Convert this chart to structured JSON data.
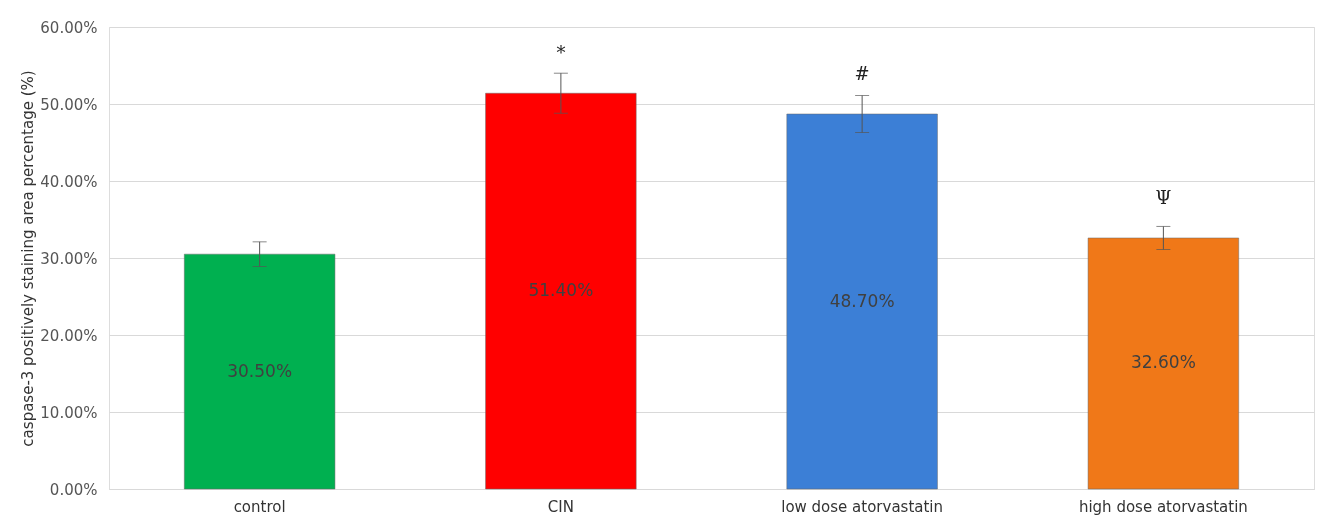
{
  "chart_data": {
    "type": "bar",
    "ylabel": "caspase-3 positively staining area percentage (%)",
    "categories": [
      "control",
      "CIN",
      "low dose atorvastatin",
      "high dose atorvastatin"
    ],
    "values": [
      30.5,
      51.4,
      48.7,
      32.6
    ],
    "colors": [
      "#00b050",
      "#ff0000",
      "#3c7fd6",
      "#f07818"
    ],
    "errors": [
      1.6,
      2.6,
      2.4,
      1.5
    ],
    "value_labels": [
      "30.50%",
      "51.40%",
      "48.70%",
      "32.60%"
    ],
    "ylim": [
      0,
      60
    ],
    "yticks": [
      {
        "value": 0,
        "label": "0.00%"
      },
      {
        "value": 10,
        "label": "10.00%"
      },
      {
        "value": 20,
        "label": "20.00%"
      },
      {
        "value": 30,
        "label": "30.00%"
      },
      {
        "value": 40,
        "label": "40.00%"
      },
      {
        "value": 50,
        "label": "50.00%"
      },
      {
        "value": 60,
        "label": "60.00%"
      }
    ],
    "annotations": [
      {
        "text": "*",
        "x": "CIN",
        "y": 51.4
      },
      {
        "text": "#",
        "x": "low dose atorvastatin",
        "y": 48.7
      },
      {
        "text": "Ψ",
        "x": "high dose atorvastatin",
        "y": 32.6
      }
    ],
    "grid": "y",
    "legend": false
  }
}
